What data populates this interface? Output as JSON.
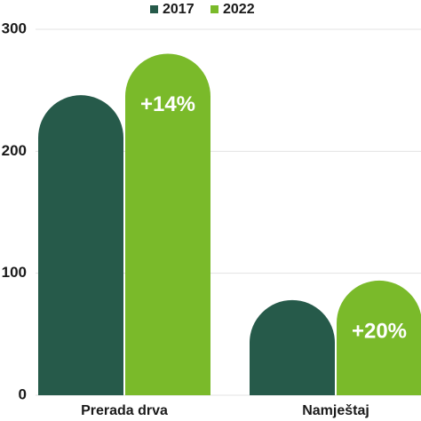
{
  "chart_data": {
    "type": "bar",
    "categories": [
      "Prerada drva",
      "Namještaj"
    ],
    "series": [
      {
        "name": "2017",
        "color": "#265a4a",
        "values": [
          246,
          78
        ]
      },
      {
        "name": "2022",
        "color": "#7aba2a",
        "values": [
          280,
          94
        ],
        "annotations": [
          "+14%",
          "+20%"
        ]
      }
    ],
    "ylim": [
      0,
      300
    ],
    "yticks": [
      0,
      100,
      200,
      300
    ],
    "grid": true,
    "legend": "top"
  }
}
